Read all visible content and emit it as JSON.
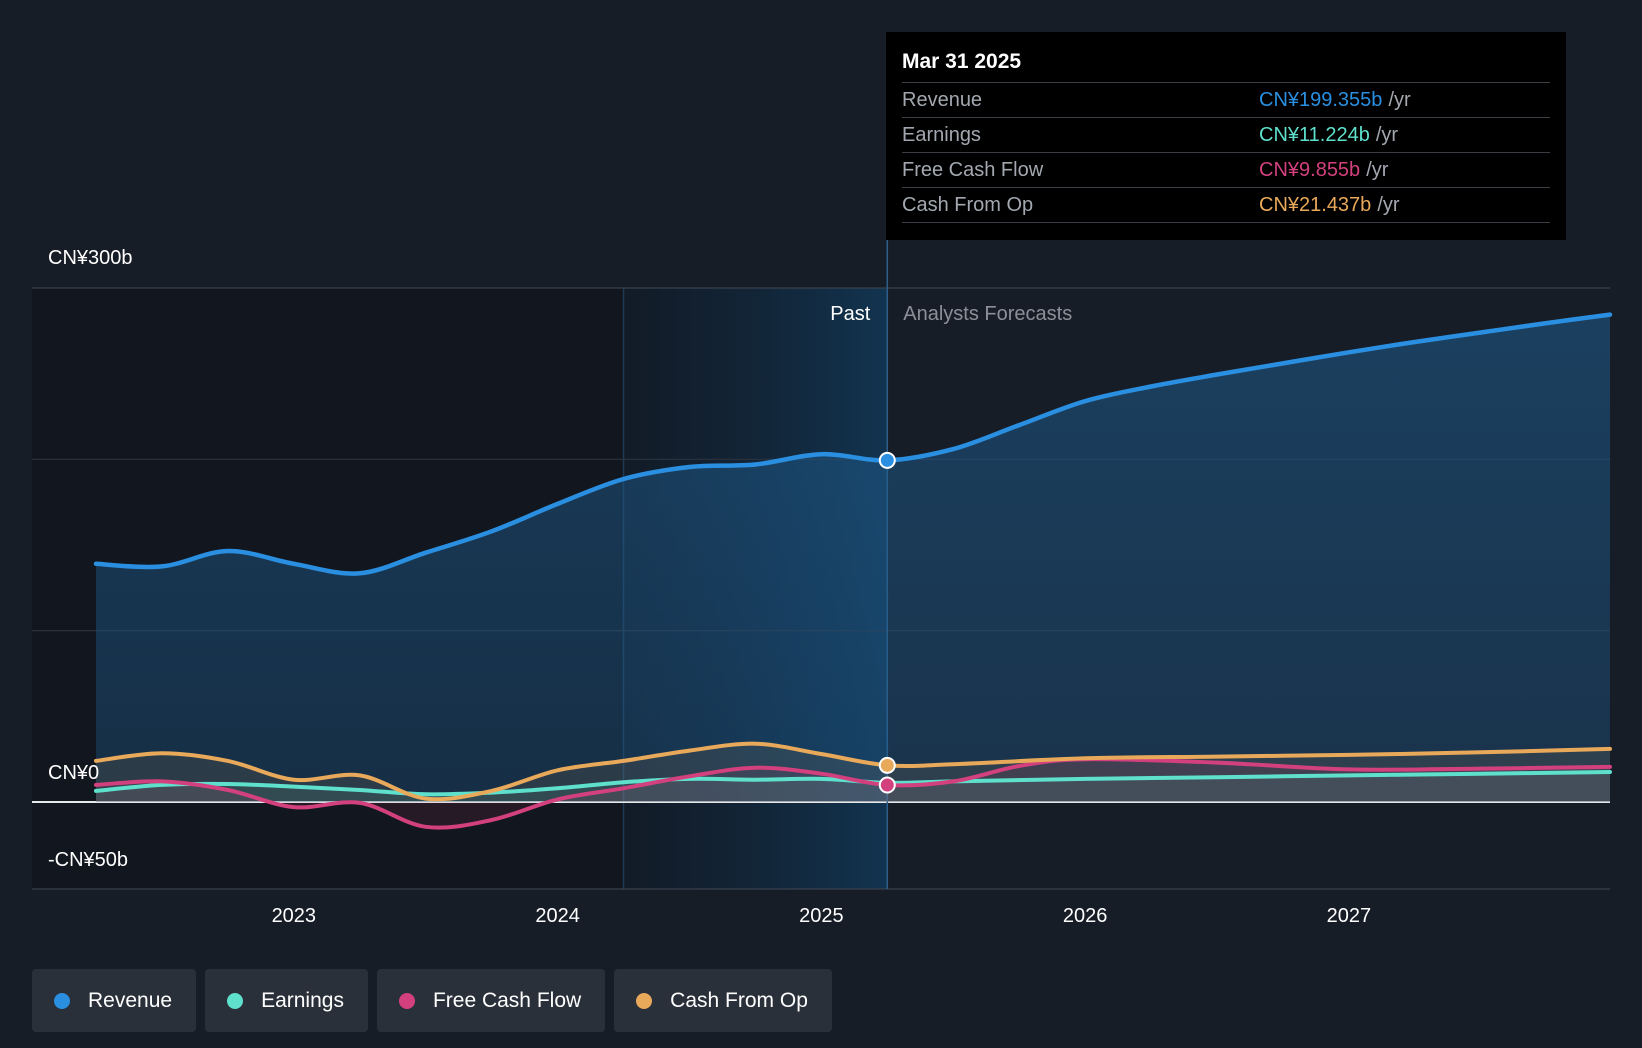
{
  "chart_data": {
    "type": "line",
    "title": "",
    "currency": "CN¥",
    "unit": "b",
    "y_ticks": [
      {
        "value": 300,
        "label": "CN¥300b"
      },
      {
        "value": 0,
        "label": "CN¥0"
      },
      {
        "value": -50,
        "label": "-CN¥50b"
      }
    ],
    "ylim": [
      -50,
      300
    ],
    "xlim": [
      2022.25,
      2027.99
    ],
    "x_ticks": [
      {
        "value": 2023,
        "label": "2023"
      },
      {
        "value": 2024,
        "label": "2024"
      },
      {
        "value": 2025,
        "label": "2025"
      },
      {
        "value": 2026,
        "label": "2026"
      },
      {
        "value": 2027,
        "label": "2027"
      }
    ],
    "past_label": "Past",
    "forecast_label": "Analysts Forecasts",
    "highlight_start": 2024.25,
    "divider_x": 2025.25,
    "series": [
      {
        "name": "Revenue",
        "color": "#2a8fe0",
        "fill": true,
        "x": [
          2022.25,
          2022.5,
          2022.75,
          2023.0,
          2023.25,
          2023.5,
          2023.75,
          2024.0,
          2024.25,
          2024.5,
          2024.75,
          2025.0,
          2025.25,
          2025.5,
          2025.75,
          2026.0,
          2026.25,
          2026.5,
          2026.75,
          2027.0,
          2027.25,
          2027.5,
          2027.75,
          2027.99
        ],
        "values": [
          139,
          137.5,
          146.5,
          139,
          133.5,
          145.5,
          158,
          174,
          188.5,
          195.5,
          197,
          203,
          199.4,
          206,
          220,
          234,
          242.5,
          249.5,
          256,
          262.5,
          268.5,
          274,
          279.5,
          284.5
        ]
      },
      {
        "name": "Earnings",
        "color": "#5ee0cc",
        "x": [
          2022.25,
          2022.5,
          2022.75,
          2023.0,
          2023.25,
          2023.5,
          2023.75,
          2024.0,
          2024.25,
          2024.5,
          2024.75,
          2025.0,
          2025.25,
          2025.5,
          2026.0,
          2026.5,
          2027.0,
          2027.5,
          2027.99
        ],
        "values": [
          6.5,
          10,
          10.5,
          9,
          7,
          4.5,
          5.5,
          8,
          11.5,
          13.5,
          13,
          13.5,
          11.2,
          12,
          13.5,
          14.5,
          15.5,
          16.5,
          17.5
        ]
      },
      {
        "name": "Free Cash Flow",
        "color": "#d3407e",
        "x": [
          2022.25,
          2022.5,
          2022.75,
          2023.0,
          2023.25,
          2023.5,
          2023.75,
          2024.0,
          2024.25,
          2024.5,
          2024.75,
          2025.0,
          2025.25,
          2025.5,
          2025.75,
          2026.0,
          2026.5,
          2027.0,
          2027.5,
          2027.99
        ],
        "values": [
          10,
          12,
          7,
          -3,
          -0.5,
          -14.5,
          -10.5,
          1.5,
          8,
          15,
          20,
          16.5,
          9.9,
          12,
          21,
          25,
          23,
          19,
          19.5,
          20.5
        ]
      },
      {
        "name": "Cash From Op",
        "color": "#e9a95a",
        "x": [
          2022.25,
          2022.5,
          2022.75,
          2023.0,
          2023.25,
          2023.5,
          2023.75,
          2024.0,
          2024.25,
          2024.5,
          2024.75,
          2025.0,
          2025.25,
          2025.5,
          2026.0,
          2026.5,
          2027.0,
          2027.5,
          2027.99
        ],
        "values": [
          24,
          28.5,
          24,
          13,
          15.5,
          2,
          6.5,
          18.5,
          24,
          30,
          34,
          28,
          21.4,
          22,
          25.5,
          26.5,
          27.5,
          29,
          31
        ]
      }
    ],
    "marker_x": 2025.25
  },
  "tooltip": {
    "date": "Mar 31 2025",
    "rows": [
      {
        "label": "Revenue",
        "value": "CN¥199.355b",
        "unit": "/yr",
        "color": "#2a8fe0"
      },
      {
        "label": "Earnings",
        "value": "CN¥11.224b",
        "unit": "/yr",
        "color": "#5ee0cc"
      },
      {
        "label": "Free Cash Flow",
        "value": "CN¥9.855b",
        "unit": "/yr",
        "color": "#d3407e"
      },
      {
        "label": "Cash From Op",
        "value": "CN¥21.437b",
        "unit": "/yr",
        "color": "#e9a95a"
      }
    ]
  },
  "legend": [
    {
      "label": "Revenue",
      "color": "#2a8fe0"
    },
    {
      "label": "Earnings",
      "color": "#5ee0cc"
    },
    {
      "label": "Free Cash Flow",
      "color": "#d3407e"
    },
    {
      "label": "Cash From Op",
      "color": "#e9a95a"
    }
  ]
}
